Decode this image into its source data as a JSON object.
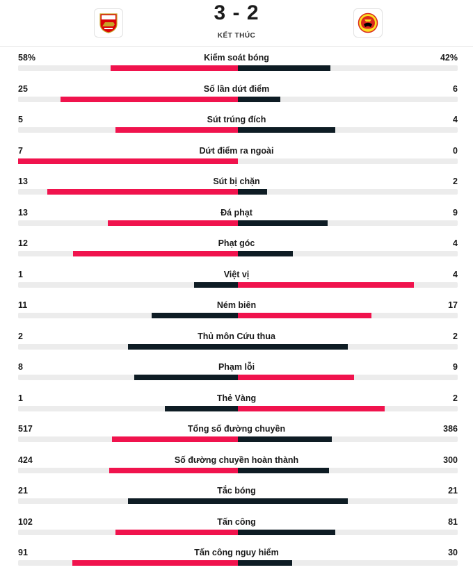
{
  "match": {
    "home_team": "Arsenal",
    "away_team": "Manchester United",
    "score": "3 - 2",
    "status": "KẾT THÚC",
    "home_icon": "arsenal-crest-icon",
    "away_icon": "manchester-united-crest-icon"
  },
  "colors": {
    "leader": "#f0134d",
    "trailer": "#0e1c24",
    "track": "#ececec"
  },
  "stats": [
    {
      "label": "Kiểm soát bóng",
      "home": "58%",
      "away": "42%",
      "home_fraction": 0.58,
      "away_fraction": 0.42
    },
    {
      "label": "Số lần dứt điểm",
      "home": "25",
      "away": "6",
      "home_fraction": 0.806,
      "away_fraction": 0.194
    },
    {
      "label": "Sút trúng đích",
      "home": "5",
      "away": "4",
      "home_fraction": 0.556,
      "away_fraction": 0.444
    },
    {
      "label": "Dứt điểm ra ngoài",
      "home": "7",
      "away": "0",
      "home_fraction": 1.0,
      "away_fraction": 0.0
    },
    {
      "label": "Sút bị chặn",
      "home": "13",
      "away": "2",
      "home_fraction": 0.867,
      "away_fraction": 0.133
    },
    {
      "label": "Đá phạt",
      "home": "13",
      "away": "9",
      "home_fraction": 0.591,
      "away_fraction": 0.409
    },
    {
      "label": "Phạt góc",
      "home": "12",
      "away": "4",
      "home_fraction": 0.75,
      "away_fraction": 0.25
    },
    {
      "label": "Việt vị",
      "home": "1",
      "away": "4",
      "home_fraction": 0.2,
      "away_fraction": 0.8
    },
    {
      "label": "Ném biên",
      "home": "11",
      "away": "17",
      "home_fraction": 0.393,
      "away_fraction": 0.607
    },
    {
      "label": "Thủ môn Cứu thua",
      "home": "2",
      "away": "2",
      "home_fraction": 0.5,
      "away_fraction": 0.5
    },
    {
      "label": "Phạm lỗi",
      "home": "8",
      "away": "9",
      "home_fraction": 0.471,
      "away_fraction": 0.529
    },
    {
      "label": "Thẻ Vàng",
      "home": "1",
      "away": "2",
      "home_fraction": 0.333,
      "away_fraction": 0.667
    },
    {
      "label": "Tổng số đường chuyền",
      "home": "517",
      "away": "386",
      "home_fraction": 0.573,
      "away_fraction": 0.427
    },
    {
      "label": "Số đường chuyền hoàn thành",
      "home": "424",
      "away": "300",
      "home_fraction": 0.586,
      "away_fraction": 0.414
    },
    {
      "label": "Tắc bóng",
      "home": "21",
      "away": "21",
      "home_fraction": 0.5,
      "away_fraction": 0.5
    },
    {
      "label": "Tấn công",
      "home": "102",
      "away": "81",
      "home_fraction": 0.557,
      "away_fraction": 0.443
    },
    {
      "label": "Tấn công nguy hiểm",
      "home": "91",
      "away": "30",
      "home_fraction": 0.752,
      "away_fraction": 0.248
    }
  ]
}
